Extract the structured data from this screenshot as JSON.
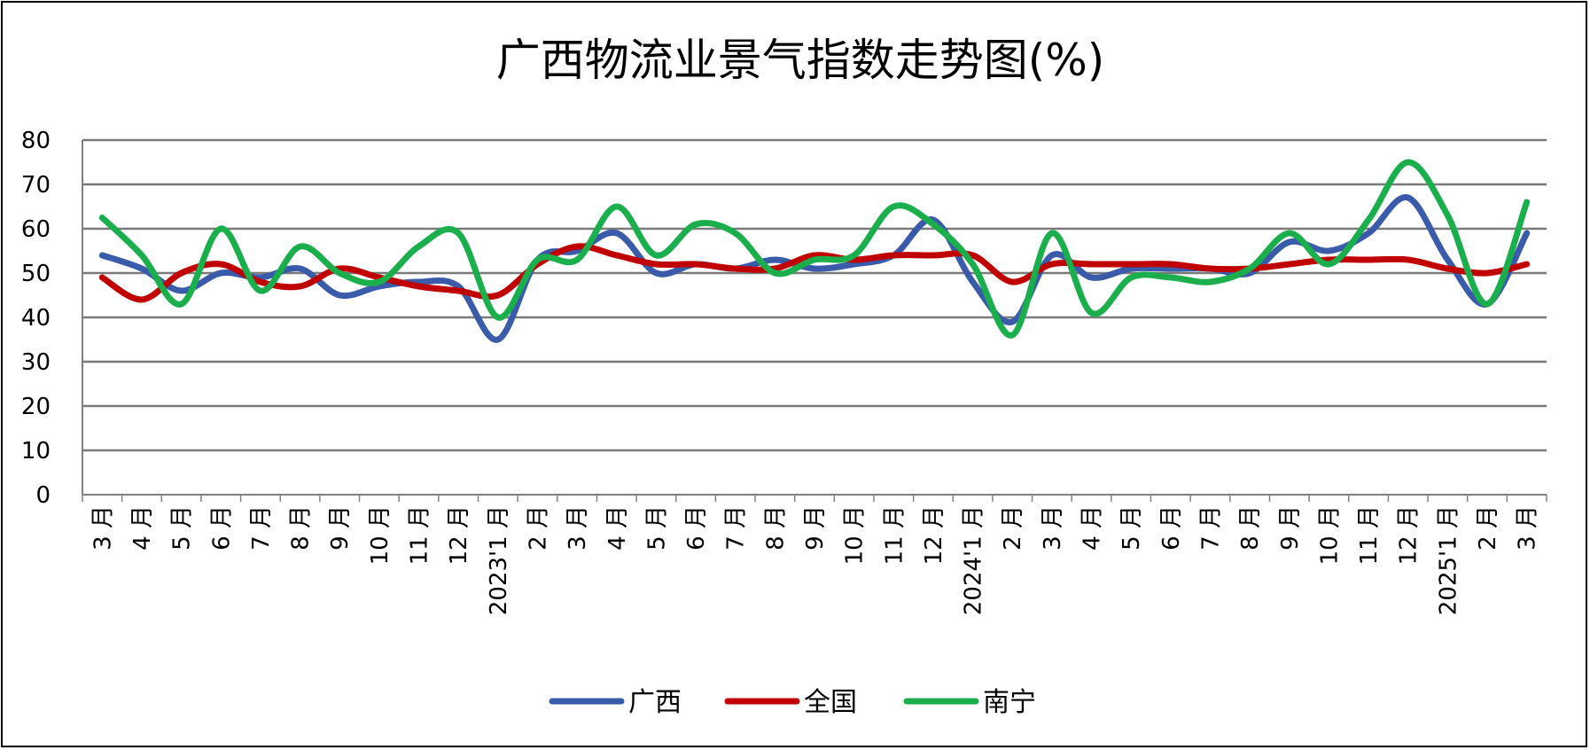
{
  "chart_data": {
    "type": "line",
    "title": "广西物流业景气指数走势图(%)",
    "xlabel": "",
    "ylabel": "",
    "ylim": [
      0,
      80
    ],
    "yticks": [
      "0",
      "10",
      "20",
      "30",
      "40",
      "50",
      "60",
      "70",
      "80"
    ],
    "grid": true,
    "legend_position": "bottom",
    "categories": [
      "3 月",
      "4 月",
      "5 月",
      "6 月",
      "7 月",
      "8 月",
      "9 月",
      "10 月",
      "11 月",
      "12 月",
      "2023'1 月",
      "2 月",
      "3 月",
      "4 月",
      "5 月",
      "6 月",
      "7 月",
      "8 月",
      "9 月",
      "10 月",
      "11 月",
      "12 月",
      "2024'1 月",
      "2 月",
      "3 月",
      "4 月",
      "5 月",
      "6 月",
      "7 月",
      "8 月",
      "9 月",
      "10 月",
      "11 月",
      "12 月",
      "2025'1 月",
      "2 月",
      "3 月"
    ],
    "series": [
      {
        "name": "广西",
        "color": "#3A5BA9",
        "values": [
          54,
          51,
          46,
          50,
          49,
          51,
          45,
          47,
          48,
          47,
          35,
          53,
          55,
          59,
          50,
          52,
          51,
          53,
          51,
          52,
          54,
          62,
          48,
          39,
          54,
          49,
          51,
          51,
          51,
          50,
          57,
          55,
          59,
          67,
          53,
          43,
          59
        ]
      },
      {
        "name": "全国",
        "color": "#C00000",
        "values": [
          49,
          44,
          50,
          52,
          48,
          47,
          51,
          49,
          47,
          46,
          45,
          52,
          56,
          54,
          52,
          52,
          51,
          51,
          54,
          53,
          54,
          54,
          54,
          48,
          52,
          52,
          52,
          52,
          51,
          51,
          52,
          53,
          53,
          53,
          51,
          50,
          52
        ]
      },
      {
        "name": "南宁",
        "color": "#1AAE4C",
        "values": [
          62.5,
          54,
          43,
          60,
          46,
          56,
          50,
          48,
          56,
          59,
          40,
          53,
          53,
          65,
          54,
          61,
          59,
          50,
          53,
          54,
          65,
          61,
          52,
          36,
          59,
          41,
          49,
          49,
          48,
          51,
          59,
          52,
          62,
          75,
          63,
          43,
          66
        ]
      }
    ]
  }
}
